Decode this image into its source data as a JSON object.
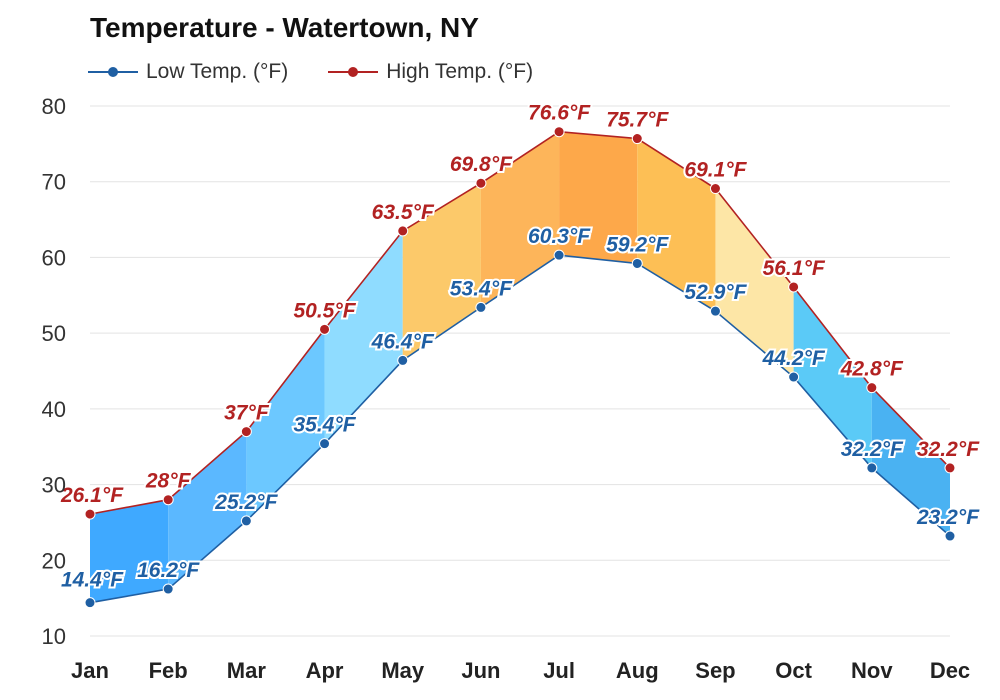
{
  "chart_data": {
    "type": "area",
    "title": "Temperature - Watertown, NY",
    "categories": [
      "Jan",
      "Feb",
      "Mar",
      "Apr",
      "May",
      "Jun",
      "Jul",
      "Aug",
      "Sep",
      "Oct",
      "Nov",
      "Dec"
    ],
    "series": [
      {
        "name": "Low Temp. (°F)",
        "color": "#1f5fa3",
        "values": [
          14.4,
          16.2,
          25.2,
          35.4,
          46.4,
          53.4,
          60.3,
          59.2,
          52.9,
          44.2,
          32.2,
          23.2
        ],
        "labels": [
          "14.4°F",
          "16.2°F",
          "25.2°F",
          "35.4°F",
          "46.4°F",
          "53.4°F",
          "60.3°F",
          "59.2°F",
          "52.9°F",
          "44.2°F",
          "32.2°F",
          "23.2°F"
        ]
      },
      {
        "name": "High Temp. (°F)",
        "color": "#b22222",
        "values": [
          26.1,
          28,
          37,
          50.5,
          63.5,
          69.8,
          76.6,
          75.7,
          69.1,
          56.1,
          42.8,
          32.2
        ],
        "labels": [
          "26.1°F",
          "28°F",
          "37°F",
          "50.5°F",
          "63.5°F",
          "69.8°F",
          "76.6°F",
          "75.7°F",
          "69.1°F",
          "56.1°F",
          "42.8°F",
          "32.2°F"
        ]
      }
    ],
    "band_colors": [
      "#3fa9ff",
      "#5bb8ff",
      "#6cc8ff",
      "#8fdcff",
      "#fcc96a",
      "#fdb55a",
      "#fda84a",
      "#fdbf55",
      "#fde6a6",
      "#5bcaf7",
      "#4ab2f2",
      "#3fa9ff"
    ],
    "ylim": [
      10,
      80
    ],
    "yticks": [
      "10",
      "20",
      "30",
      "40",
      "50",
      "60",
      "70",
      "80"
    ],
    "grid": true,
    "legend_position": "top-left"
  }
}
